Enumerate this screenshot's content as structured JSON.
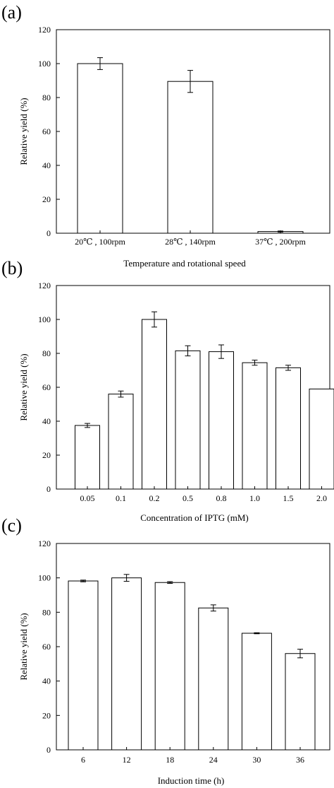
{
  "figure": {
    "panels": [
      {
        "label": "(a)"
      },
      {
        "label": "(b)"
      },
      {
        "label": "(c)"
      }
    ]
  },
  "chart_data": [
    {
      "type": "bar",
      "panel": "(a)",
      "categories": [
        "20℃ , 100rpm",
        "28℃ , 140rpm",
        "37℃ , 200rpm"
      ],
      "values": [
        100,
        89.5,
        1
      ],
      "errors": [
        3.5,
        6.5,
        0.3
      ],
      "xlabel": "Temperature and rotational speed",
      "ylabel": "Relative yield (%)",
      "ylim": [
        0,
        120
      ],
      "yticks": [
        0,
        20,
        40,
        60,
        80,
        100,
        120
      ],
      "grid": false,
      "bar_color": "#ffffff",
      "edge_color": "#000000"
    },
    {
      "type": "bar",
      "panel": "(b)",
      "categories": [
        "0.05",
        "0.1",
        "0.2",
        "0.5",
        "0.8",
        "1.0",
        "1.5",
        "2.0"
      ],
      "values": [
        37.5,
        56,
        100,
        81.5,
        81,
        74.5,
        71.5,
        59
      ],
      "errors": [
        1.2,
        1.8,
        4.5,
        3,
        4,
        1.5,
        1.5,
        0
      ],
      "xlabel": "Concentration of IPTG (mM)",
      "ylabel": "Relative yield (%)",
      "ylim": [
        0,
        120
      ],
      "yticks": [
        0,
        20,
        40,
        60,
        80,
        100,
        120
      ],
      "grid": false,
      "bar_color": "#ffffff",
      "edge_color": "#000000"
    },
    {
      "type": "bar",
      "panel": "(c)",
      "categories": [
        "6",
        "12",
        "18",
        "24",
        "30",
        "36"
      ],
      "values": [
        98.2,
        100,
        97.3,
        82.5,
        67.8,
        56
      ],
      "errors": [
        0.5,
        2,
        0.5,
        1.8,
        0.3,
        2.5
      ],
      "xlabel": "Induction time (h)",
      "ylabel": "Relative yield (%)",
      "ylim": [
        0,
        120
      ],
      "yticks": [
        0,
        20,
        40,
        60,
        80,
        100,
        120
      ],
      "grid": false,
      "bar_color": "#ffffff",
      "edge_color": "#000000"
    }
  ]
}
